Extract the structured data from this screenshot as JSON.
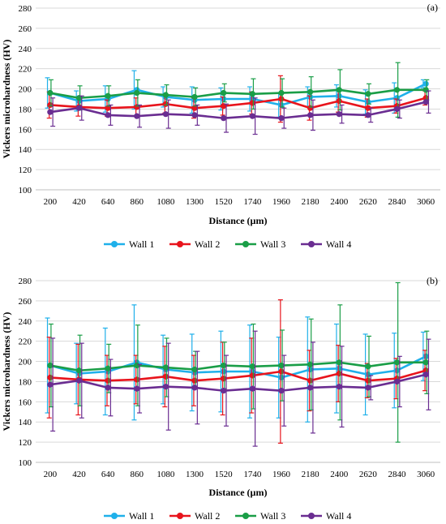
{
  "chart_data": [
    {
      "type": "line",
      "panel_label": "(a)",
      "xlabel": "Distance (µm)",
      "ylabel": "Vickers microhardness (HV)",
      "categories": [
        "200",
        "420",
        "640",
        "860",
        "1080",
        "1300",
        "1520",
        "1740",
        "1960",
        "2180",
        "2400",
        "2620",
        "2840",
        "3060"
      ],
      "ylim": [
        100,
        280
      ],
      "yticks": [
        100,
        120,
        140,
        160,
        180,
        200,
        220,
        240,
        260,
        280
      ],
      "grid": true,
      "legend": "bottom",
      "series": [
        {
          "name": "Wall 1",
          "color": "#1fb0ea",
          "values": [
            196,
            188,
            190,
            199,
            192,
            189,
            190,
            190,
            184,
            192,
            193,
            187,
            191,
            205
          ],
          "errors": [
            15,
            10,
            13,
            19,
            10,
            13,
            11,
            12,
            12,
            10,
            11,
            12,
            15,
            4
          ]
        },
        {
          "name": "Wall 2",
          "color": "#e8141c",
          "values": [
            184,
            182,
            181,
            182,
            185,
            181,
            183,
            186,
            190,
            181,
            188,
            181,
            183,
            191
          ],
          "errors": [
            13,
            9,
            8,
            9,
            9,
            10,
            9,
            11,
            23,
            12,
            11,
            9,
            7,
            7
          ]
        },
        {
          "name": "Wall 3",
          "color": "#1a9e47",
          "values": [
            196,
            191,
            193,
            196,
            194,
            192,
            196,
            195,
            196,
            197,
            199,
            195,
            199,
            199
          ],
          "errors": [
            13,
            12,
            10,
            13,
            10,
            9,
            9,
            15,
            14,
            15,
            20,
            10,
            27,
            10
          ]
        },
        {
          "name": "Wall 4",
          "color": "#6a2d91",
          "values": [
            177,
            181,
            174,
            173,
            175,
            174,
            171,
            173,
            171,
            174,
            175,
            174,
            180,
            187
          ],
          "errors": [
            14,
            12,
            10,
            11,
            14,
            10,
            14,
            18,
            10,
            15,
            9,
            7,
            9,
            11
          ]
        }
      ]
    },
    {
      "type": "line",
      "panel_label": "(b)",
      "xlabel": "Distance (µm)",
      "ylabel": "Vickers microhardness (HV)",
      "categories": [
        "200",
        "420",
        "640",
        "860",
        "1080",
        "1300",
        "1520",
        "1740",
        "1960",
        "2180",
        "2400",
        "2620",
        "2840",
        "3060"
      ],
      "ylim": [
        100,
        280
      ],
      "yticks": [
        100,
        120,
        140,
        160,
        180,
        200,
        220,
        240,
        260,
        280
      ],
      "grid": true,
      "legend": "bottom",
      "series": [
        {
          "name": "Wall 1",
          "color": "#1fb0ea",
          "values": [
            196,
            188,
            190,
            199,
            192,
            189,
            190,
            190,
            184,
            192,
            193,
            187,
            191,
            205
          ],
          "errors": [
            47,
            30,
            43,
            57,
            34,
            38,
            40,
            46,
            40,
            52,
            44,
            40,
            37,
            24
          ]
        },
        {
          "name": "Wall 2",
          "color": "#e8141c",
          "values": [
            184,
            182,
            181,
            182,
            185,
            181,
            183,
            186,
            190,
            181,
            188,
            181,
            183,
            191
          ],
          "errors": [
            40,
            35,
            25,
            24,
            30,
            25,
            36,
            37,
            71,
            30,
            28,
            17,
            20,
            20
          ]
        },
        {
          "name": "Wall 3",
          "color": "#1a9e47",
          "values": [
            196,
            191,
            193,
            196,
            194,
            192,
            196,
            195,
            196,
            197,
            199,
            195,
            199,
            199
          ],
          "errors": [
            41,
            35,
            24,
            40,
            29,
            18,
            23,
            42,
            35,
            45,
            57,
            30,
            79,
            31
          ]
        },
        {
          "name": "Wall 4",
          "color": "#6a2d91",
          "values": [
            177,
            181,
            174,
            173,
            175,
            174,
            171,
            173,
            171,
            174,
            175,
            174,
            180,
            187
          ],
          "errors": [
            46,
            37,
            28,
            24,
            43,
            36,
            35,
            57,
            35,
            45,
            40,
            12,
            25,
            35
          ]
        }
      ]
    }
  ]
}
